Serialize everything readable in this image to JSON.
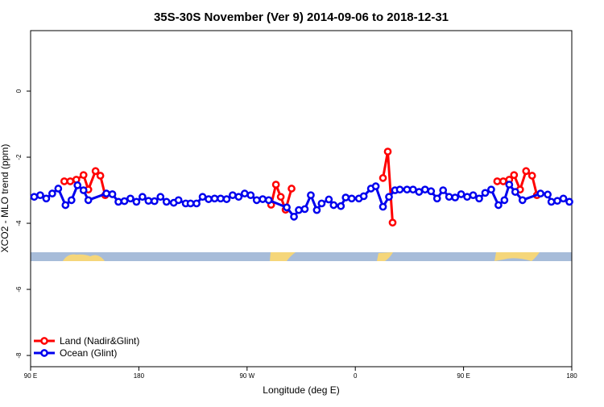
{
  "chart_data": {
    "type": "line",
    "title": "35S-30S November (Ver 9)   2014-09-06 to 2018-12-31",
    "x_label": "Longitude (deg E)",
    "y_label": "XCO2 - MLO trend (ppm)",
    "xlim": [
      90,
      540
    ],
    "xticks": [
      {
        "value": 90,
        "label": "90 E"
      },
      180,
      {
        "value": 270,
        "label": "90 W"
      },
      {
        "value": 360,
        "label": "0"
      },
      {
        "value": 450,
        "label": "90 E"
      },
      {
        "value": 540,
        "label": "180"
      }
    ],
    "ylim": [
      -8.34,
      1.83
    ],
    "yticks": [
      -8,
      -6,
      -4,
      -2,
      0
    ],
    "legend": "lower left",
    "series": [
      {
        "name": "Land (Nadir&Glint)",
        "color": "#ff0000",
        "x": [
          118,
          123,
          128,
          134,
          138,
          144,
          148,
          152,
          null,
          290,
          294,
          298,
          302,
          307,
          null,
          383,
          387,
          391,
          null,
          478,
          483,
          488,
          492,
          497,
          502,
          507,
          511
        ],
        "values": [
          -2.73,
          -2.73,
          -2.68,
          -2.54,
          -2.98,
          -2.42,
          -2.56,
          -3.15,
          null,
          -3.44,
          -2.83,
          -3.2,
          -3.59,
          -2.95,
          null,
          -2.63,
          -1.83,
          -3.98,
          null,
          -2.73,
          -2.73,
          -2.68,
          -2.54,
          -2.98,
          -2.42,
          -2.56,
          -3.15
        ]
      },
      {
        "name": "Ocean (Glint)",
        "color": "#0000ee",
        "x": [
          93,
          98,
          103,
          108,
          113,
          119,
          124,
          129,
          134,
          138,
          153,
          158,
          163,
          168,
          173,
          178,
          183,
          188,
          193,
          198,
          203,
          209,
          213,
          219,
          223,
          228,
          233,
          238,
          243,
          248,
          253,
          258,
          263,
          268,
          273,
          278,
          283,
          288,
          303,
          309,
          313,
          318,
          323,
          328,
          332,
          338,
          342,
          348,
          352,
          357,
          363,
          367,
          373,
          377,
          383,
          388,
          393,
          397,
          403,
          408,
          413,
          418,
          423,
          428,
          433,
          438,
          443,
          448,
          453,
          458,
          463,
          468,
          473,
          479,
          484,
          488,
          493,
          499,
          514,
          520,
          523,
          528,
          533,
          538
        ],
        "values": [
          -3.2,
          -3.15,
          -3.25,
          -3.1,
          -2.95,
          -3.45,
          -3.3,
          -2.85,
          -3.0,
          -3.3,
          -3.1,
          -3.12,
          -3.35,
          -3.33,
          -3.25,
          -3.35,
          -3.2,
          -3.32,
          -3.33,
          -3.2,
          -3.35,
          -3.38,
          -3.3,
          -3.4,
          -3.4,
          -3.4,
          -3.2,
          -3.27,
          -3.25,
          -3.25,
          -3.27,
          -3.15,
          -3.2,
          -3.1,
          -3.15,
          -3.3,
          -3.27,
          -3.3,
          -3.52,
          -3.8,
          -3.6,
          -3.57,
          -3.15,
          -3.6,
          -3.4,
          -3.28,
          -3.45,
          -3.48,
          -3.22,
          -3.25,
          -3.25,
          -3.18,
          -2.95,
          -2.88,
          -3.5,
          -3.2,
          -3.0,
          -2.98,
          -2.98,
          -2.98,
          -3.05,
          -2.98,
          -3.03,
          -3.25,
          -3.0,
          -3.2,
          -3.22,
          -3.12,
          -3.2,
          -3.15,
          -3.25,
          -3.08,
          -2.98,
          -3.45,
          -3.3,
          -2.83,
          -3.05,
          -3.3,
          -3.1,
          -3.13,
          -3.35,
          -3.32,
          -3.25,
          -3.35
        ]
      }
    ]
  }
}
